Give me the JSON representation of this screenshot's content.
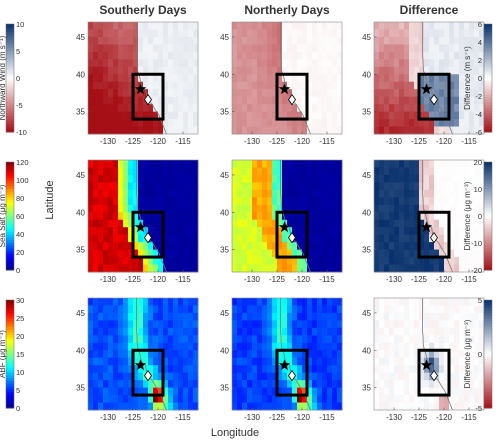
{
  "column_titles": [
    "Southerly Days",
    "Northerly Days",
    "Difference"
  ],
  "x_label": "Longitude",
  "y_label": "Latitude",
  "colors": {
    "jet": [
      "#00008f",
      "#0000ff",
      "#0080ff",
      "#00ffff",
      "#80ff80",
      "#ffff00",
      "#ff8000",
      "#ff0000",
      "#800000"
    ],
    "div": [
      "#a50f15",
      "#ffffff",
      "#08306b"
    ],
    "map_outline": "#7a7a7a",
    "box": "#000000"
  },
  "chart_data": [
    {
      "type": "heatmap",
      "row": "Northward Wind",
      "left_colorbar_label": "Northward Wind (m s⁻¹)",
      "left_colormap": "diverging red-white-blue",
      "left_ticks": [
        "10",
        "5",
        "0",
        "-5",
        "-10"
      ],
      "left_range": [
        -10,
        10
      ],
      "right_colorbar_label": "Difference (m s⁻¹)",
      "right_colormap": "diverging red-white-blue",
      "right_ticks": [
        "6",
        "4",
        "2",
        "0",
        "-2",
        "-4",
        "-6"
      ],
      "right_range": [
        -6,
        6
      ],
      "x_ticks": [
        "-130",
        "-125",
        "-120",
        "-115"
      ],
      "y_ticks": [
        "45",
        "40",
        "35"
      ],
      "xlim": [
        -134,
        -112
      ],
      "ylim": [
        32,
        47
      ],
      "box": {
        "lon": [
          -125,
          -119
        ],
        "lat": [
          34,
          40
        ]
      },
      "star": {
        "lon": -123.5,
        "lat": 38
      },
      "diamond": {
        "lon": -122,
        "lat": 36.6
      },
      "panels": [
        {
          "name": "Southerly Days",
          "pattern": "westerly region strongly negative (southward flow, red), weakly positive east of coast"
        },
        {
          "name": "Northerly Days",
          "pattern": "negative offshore, strongest near coast, near zero inland"
        },
        {
          "name": "Difference",
          "pattern": "negative offshore, positive over box and coast (blue)"
        }
      ]
    },
    {
      "type": "heatmap",
      "row": "Sea Salt",
      "left_colorbar_label": "Sea Salt (μg m⁻³)",
      "left_colormap": "jet",
      "left_ticks": [
        "120",
        "100",
        "80",
        "60",
        "40",
        "20",
        "0"
      ],
      "left_range": [
        0,
        120
      ],
      "right_colorbar_label": "Difference (μg m⁻³)",
      "right_colormap": "diverging red-white-blue",
      "right_ticks": [
        "20",
        "10",
        "0",
        "-10",
        "-20"
      ],
      "right_range": [
        -20,
        20
      ],
      "x_ticks": [
        "-130",
        "-125",
        "-120",
        "-115"
      ],
      "y_ticks": [
        "45",
        "40",
        "35"
      ],
      "xlim": [
        -134,
        -112
      ],
      "ylim": [
        32,
        47
      ],
      "box": {
        "lon": [
          -125,
          -119
        ],
        "lat": [
          34,
          40
        ]
      },
      "star": {
        "lon": -123.5,
        "lat": 38
      },
      "diamond": {
        "lon": -122,
        "lat": 36.6
      },
      "panels": [
        {
          "name": "Southerly Days",
          "pattern": "very high offshore (~110), sharp drop to ~0 at coast"
        },
        {
          "name": "Northerly Days",
          "pattern": "moderate offshore (~70-90), drop to ~0 at coast"
        },
        {
          "name": "Difference",
          "pattern": "strongly positive offshore (~20), slightly negative along coast"
        }
      ]
    },
    {
      "type": "heatmap",
      "row": "ABF",
      "left_colorbar_label": "ABF (μg m⁻³)",
      "left_colormap": "jet",
      "left_ticks": [
        "30",
        "25",
        "20",
        "15",
        "10",
        "5",
        "0"
      ],
      "left_range": [
        0,
        30
      ],
      "right_colorbar_label": "Difference (μg m⁻³)",
      "right_colormap": "diverging red-white-blue",
      "right_ticks": [
        "5",
        "0",
        "-5"
      ],
      "right_range": [
        -5,
        5
      ],
      "x_ticks": [
        "-130",
        "-125",
        "-120",
        "-115"
      ],
      "y_ticks": [
        "45",
        "40",
        "35"
      ],
      "xlim": [
        -134,
        -112
      ],
      "ylim": [
        32,
        47
      ],
      "box": {
        "lon": [
          -125,
          -119
        ],
        "lat": [
          34,
          40
        ]
      },
      "star": {
        "lon": -123.5,
        "lat": 38
      },
      "diamond": {
        "lon": -122,
        "lat": 36.6
      },
      "panels": [
        {
          "name": "Southerly Days",
          "pattern": "low background (~5-10), hotspot along coast near 34N reaching ~30"
        },
        {
          "name": "Northerly Days",
          "pattern": "similar to southerly, hotspot near coast ~34N"
        },
        {
          "name": "Difference",
          "pattern": "mostly near zero, positive near box (~5), small negatives"
        }
      ]
    }
  ]
}
